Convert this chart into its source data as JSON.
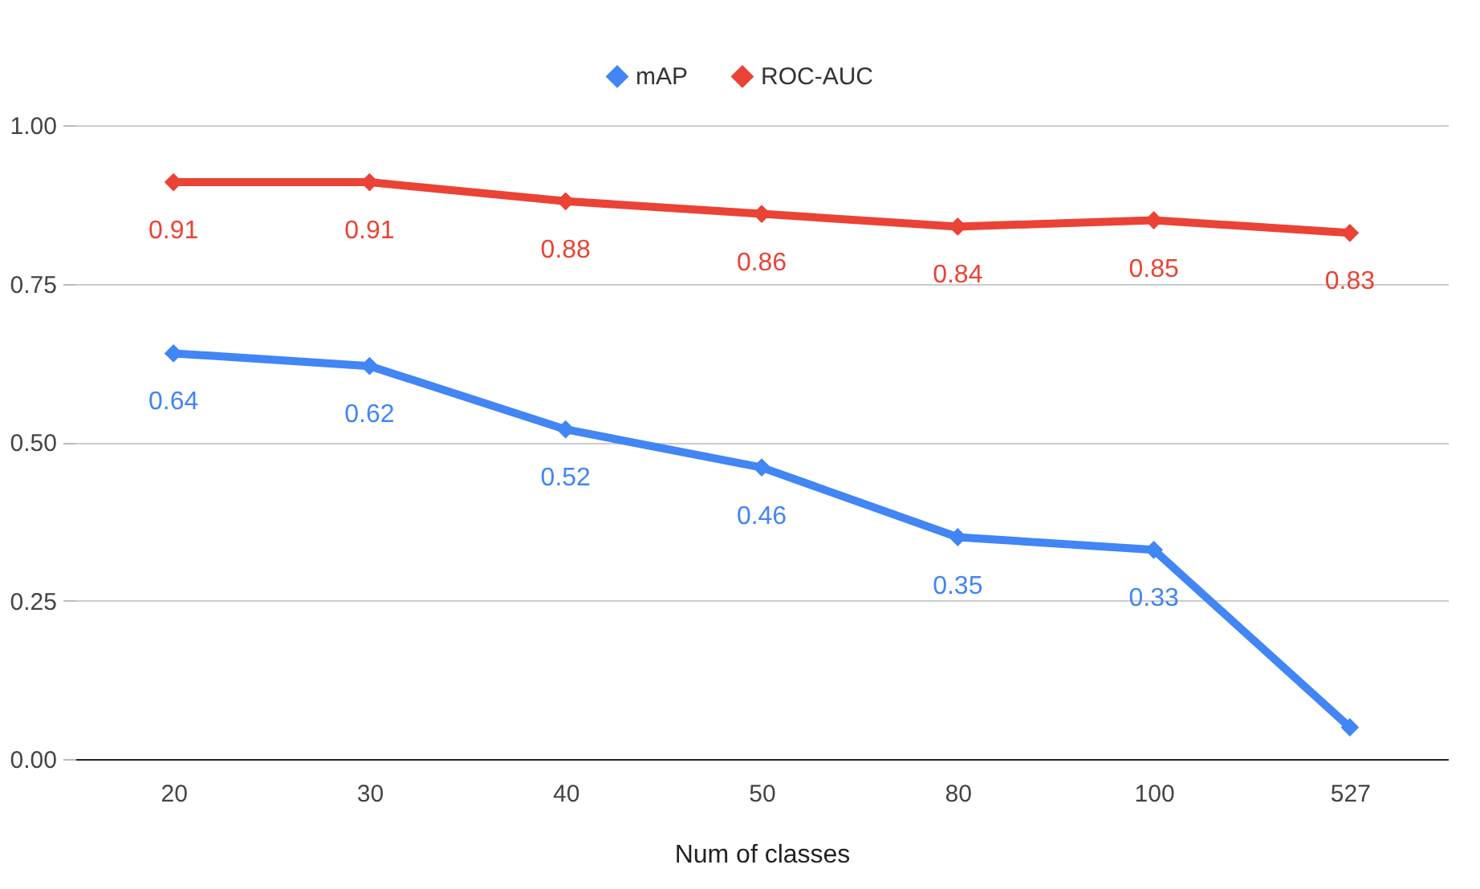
{
  "chart_data": {
    "type": "line",
    "xlabel": "Num of classes",
    "categories": [
      "20",
      "30",
      "40",
      "50",
      "80",
      "100",
      "527"
    ],
    "series": [
      {
        "name": "mAP",
        "color": "#4285f4",
        "values": [
          0.64,
          0.62,
          0.52,
          0.46,
          0.35,
          0.33,
          0.05
        ],
        "value_labels": [
          "0.64",
          "0.62",
          "0.52",
          "0.46",
          "0.35",
          "0.33",
          null
        ]
      },
      {
        "name": "ROC-AUC",
        "color": "#ea4335",
        "values": [
          0.91,
          0.91,
          0.88,
          0.86,
          0.84,
          0.85,
          0.83
        ],
        "value_labels": [
          "0.91",
          "0.91",
          "0.88",
          "0.86",
          "0.84",
          "0.85",
          "0.83"
        ]
      }
    ],
    "ylim": [
      0,
      1
    ],
    "yticks": [
      {
        "value": 0,
        "label": "0.00"
      },
      {
        "value": 0.25,
        "label": "0.25"
      },
      {
        "value": 0.5,
        "label": "0.50"
      },
      {
        "value": 0.75,
        "label": "0.75"
      },
      {
        "value": 1,
        "label": "1.00"
      }
    ],
    "grid": "y",
    "legend": "top",
    "marker": "diamond",
    "line_style": "solid"
  }
}
